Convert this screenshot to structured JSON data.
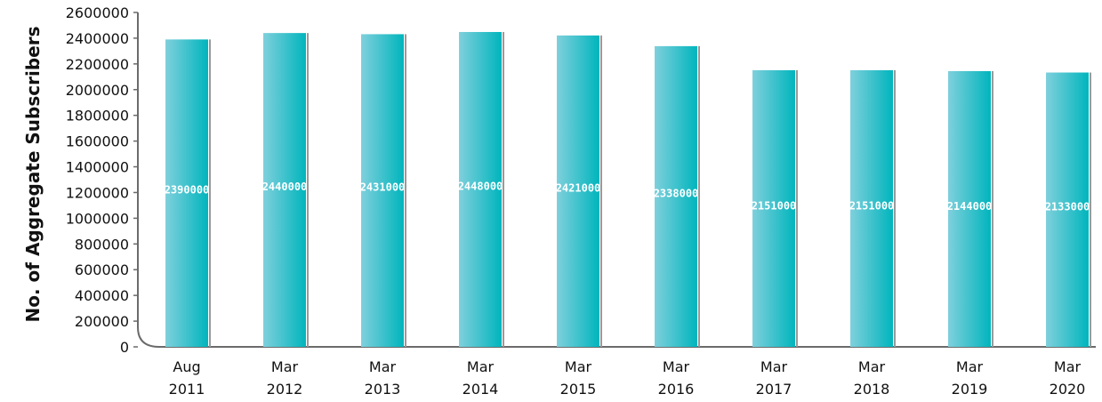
{
  "chart_data": {
    "type": "bar",
    "title": "",
    "xlabel": "",
    "ylabel": "No. of Aggregate Subscribers",
    "ylim": [
      0,
      2600000
    ],
    "yticks": [
      0,
      200000,
      400000,
      600000,
      800000,
      1000000,
      1200000,
      1400000,
      1600000,
      1800000,
      2000000,
      2200000,
      2400000,
      2600000
    ],
    "categories": [
      [
        "Aug",
        "2011"
      ],
      [
        "Mar",
        "2012"
      ],
      [
        "Mar",
        "2013"
      ],
      [
        "Mar",
        "2014"
      ],
      [
        "Mar",
        "2015"
      ],
      [
        "Mar",
        "2016"
      ],
      [
        "Mar",
        "2017"
      ],
      [
        "Mar",
        "2018"
      ],
      [
        "Mar",
        "2019"
      ],
      [
        "Mar",
        "2020"
      ]
    ],
    "values": [
      2390000,
      2440000,
      2431000,
      2448000,
      2421000,
      2338000,
      2151000,
      2151000,
      2144000,
      2133000
    ],
    "data_labels": [
      "2390000",
      "2440000",
      "2431000",
      "2448000",
      "2421000",
      "2338000",
      "2151000",
      "2151000",
      "2144000",
      "2133000"
    ],
    "grid": false,
    "legend": "none",
    "colors": {
      "bar_light": "#7fd0dc",
      "bar_dark": "#00b5bd",
      "bar_shadow": "#9a9a9a",
      "axis": "#6b6b6b",
      "label_text": "#ffffff"
    }
  }
}
